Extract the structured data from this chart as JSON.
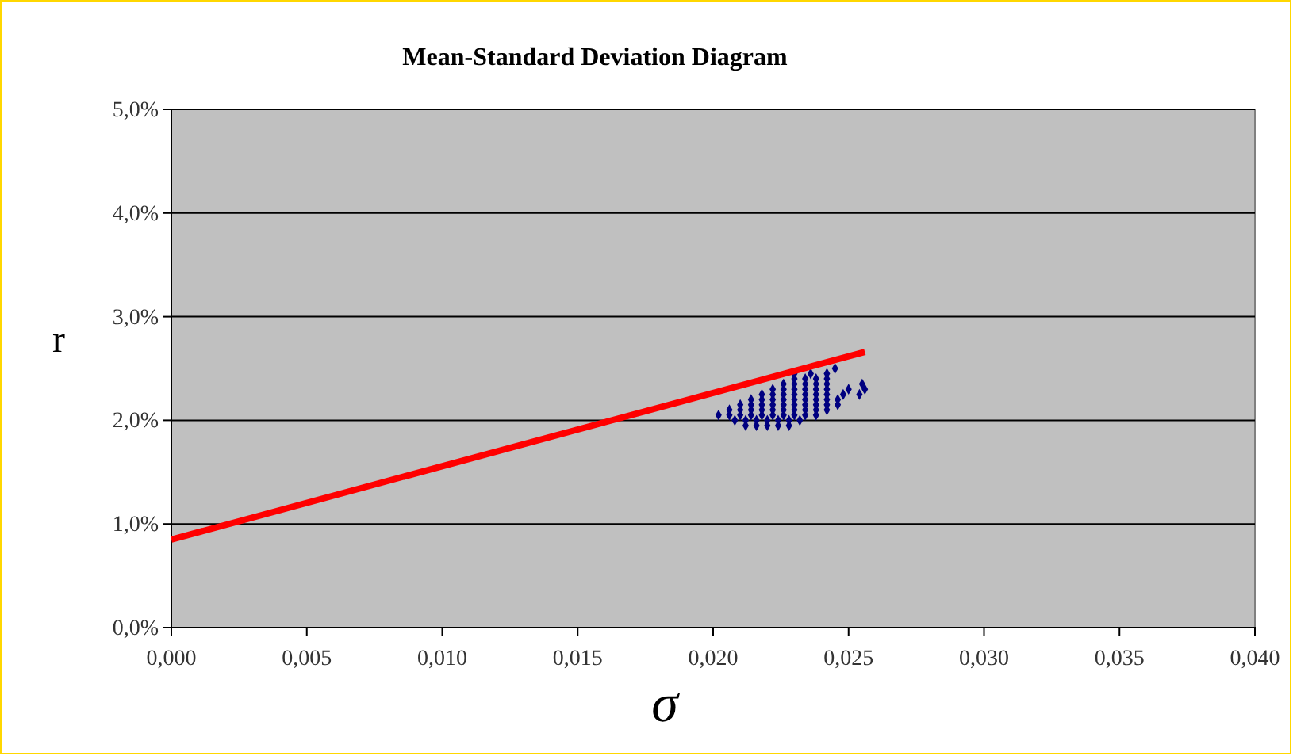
{
  "chart_data": {
    "type": "scatter",
    "title": "Mean-Standard Deviation Diagram",
    "xlabel": "σ",
    "ylabel": "r",
    "xlim": [
      0,
      0.04
    ],
    "xticks": [
      {
        "value": 0,
        "label": "0,000"
      },
      {
        "value": 0.005,
        "label": "0,005"
      },
      {
        "value": 0.01,
        "label": "0,010"
      },
      {
        "value": 0.015,
        "label": "0,015"
      },
      {
        "value": 0.02,
        "label": "0,020"
      },
      {
        "value": 0.025,
        "label": "0,025"
      },
      {
        "value": 0.03,
        "label": "0,030"
      },
      {
        "value": 0.035,
        "label": "0,035"
      },
      {
        "value": 0.04,
        "label": "0,040"
      }
    ],
    "ylim": [
      0,
      5
    ],
    "yticks": [
      {
        "value": 0,
        "label": "0,0%"
      },
      {
        "value": 1,
        "label": "1,0%"
      },
      {
        "value": 2,
        "label": "2,0%"
      },
      {
        "value": 3,
        "label": "3,0%"
      },
      {
        "value": 4,
        "label": "4,0%"
      },
      {
        "value": 5,
        "label": "5,0%"
      }
    ],
    "grid": "y",
    "legend": false,
    "series": [
      {
        "type": "scatter",
        "color": "#000080",
        "marker": "diamond",
        "x": [
          0.0212,
          0.0216,
          0.022,
          0.0224,
          0.0228,
          0.0208,
          0.0212,
          0.0216,
          0.022,
          0.0224,
          0.0228,
          0.0232,
          0.0202,
          0.0206,
          0.021,
          0.0214,
          0.0218,
          0.0222,
          0.0226,
          0.023,
          0.0234,
          0.0238,
          0.0206,
          0.021,
          0.0214,
          0.0218,
          0.0222,
          0.0226,
          0.023,
          0.0234,
          0.0238,
          0.0242,
          0.021,
          0.0214,
          0.0218,
          0.0222,
          0.0226,
          0.023,
          0.0234,
          0.0238,
          0.0242,
          0.0246,
          0.0214,
          0.0218,
          0.0222,
          0.0226,
          0.023,
          0.0234,
          0.0238,
          0.0242,
          0.0246,
          0.0218,
          0.0222,
          0.0226,
          0.023,
          0.0234,
          0.0238,
          0.0242,
          0.0248,
          0.0254,
          0.0222,
          0.0226,
          0.023,
          0.0234,
          0.0238,
          0.0242,
          0.025,
          0.0256,
          0.0226,
          0.023,
          0.0234,
          0.0238,
          0.0242,
          0.0255,
          0.023,
          0.0234,
          0.0238,
          0.0242,
          0.023,
          0.0236,
          0.0242,
          0.0245
        ],
        "values": [
          1.95,
          1.95,
          1.95,
          1.95,
          1.95,
          2.0,
          2.0,
          2.0,
          2.0,
          2.0,
          2.0,
          2.0,
          2.05,
          2.05,
          2.05,
          2.05,
          2.05,
          2.05,
          2.05,
          2.05,
          2.05,
          2.05,
          2.1,
          2.1,
          2.1,
          2.1,
          2.1,
          2.1,
          2.1,
          2.1,
          2.1,
          2.1,
          2.15,
          2.15,
          2.15,
          2.15,
          2.15,
          2.15,
          2.15,
          2.15,
          2.15,
          2.15,
          2.2,
          2.2,
          2.2,
          2.2,
          2.2,
          2.2,
          2.2,
          2.2,
          2.2,
          2.25,
          2.25,
          2.25,
          2.25,
          2.25,
          2.25,
          2.25,
          2.25,
          2.25,
          2.3,
          2.3,
          2.3,
          2.3,
          2.3,
          2.3,
          2.3,
          2.3,
          2.35,
          2.35,
          2.35,
          2.35,
          2.35,
          2.35,
          2.4,
          2.4,
          2.4,
          2.4,
          2.45,
          2.45,
          2.45,
          2.5
        ]
      },
      {
        "type": "line",
        "color": "#ff0000",
        "marker": "none",
        "x": [
          0,
          0.0256
        ],
        "values": [
          0.85,
          2.66
        ]
      }
    ]
  }
}
